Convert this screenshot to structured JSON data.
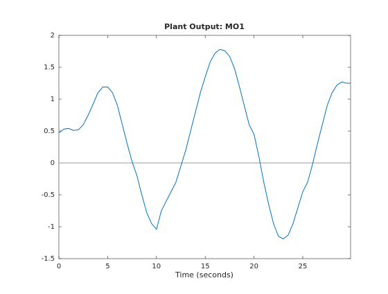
{
  "chart_data": {
    "type": "line",
    "title": "Plant Output:  MO1",
    "x_label": "Time (seconds)",
    "x": [
      0,
      0.5,
      1,
      1.5,
      2,
      2.5,
      3,
      3.5,
      4,
      4.5,
      5,
      5.5,
      6,
      6.5,
      7,
      7.5,
      8,
      8.5,
      9,
      9.5,
      10,
      10.5,
      11,
      11.5,
      12,
      12.5,
      13,
      13.5,
      14,
      14.5,
      15,
      15.5,
      16,
      16.5,
      17,
      17.5,
      18,
      18.5,
      19,
      19.5,
      20,
      20.5,
      21,
      21.5,
      22,
      22.5,
      23,
      23.5,
      24,
      24.5,
      25,
      25.5,
      26,
      26.5,
      27,
      27.5,
      28,
      28.5,
      29,
      29.5,
      29.9
    ],
    "series": [
      {
        "color": "#0072bd",
        "values": [
          0.47,
          0.53,
          0.54,
          0.51,
          0.52,
          0.6,
          0.75,
          0.92,
          1.1,
          1.19,
          1.19,
          1.1,
          0.9,
          0.6,
          0.3,
          0.02,
          -0.2,
          -0.5,
          -0.78,
          -0.95,
          -1.04,
          -0.75,
          -0.6,
          -0.45,
          -0.3,
          -0.05,
          0.2,
          0.5,
          0.8,
          1.1,
          1.35,
          1.58,
          1.72,
          1.78,
          1.76,
          1.67,
          1.48,
          1.2,
          0.9,
          0.6,
          0.45,
          0.1,
          -0.3,
          -0.65,
          -0.95,
          -1.15,
          -1.19,
          -1.13,
          -0.95,
          -0.7,
          -0.45,
          -0.3,
          -0.02,
          0.3,
          0.6,
          0.9,
          1.1,
          1.22,
          1.27,
          1.25,
          1.25
        ]
      }
    ],
    "xlim": [
      0,
      29.9
    ],
    "xticks": [
      0,
      5,
      10,
      15,
      20,
      25
    ],
    "ylim": [
      -1.5,
      2
    ],
    "yticks": [
      2,
      1.5,
      1,
      0.5,
      0,
      -0.5,
      -1,
      -1.5
    ],
    "zero_line": true,
    "zero_line_color": "#999999"
  }
}
